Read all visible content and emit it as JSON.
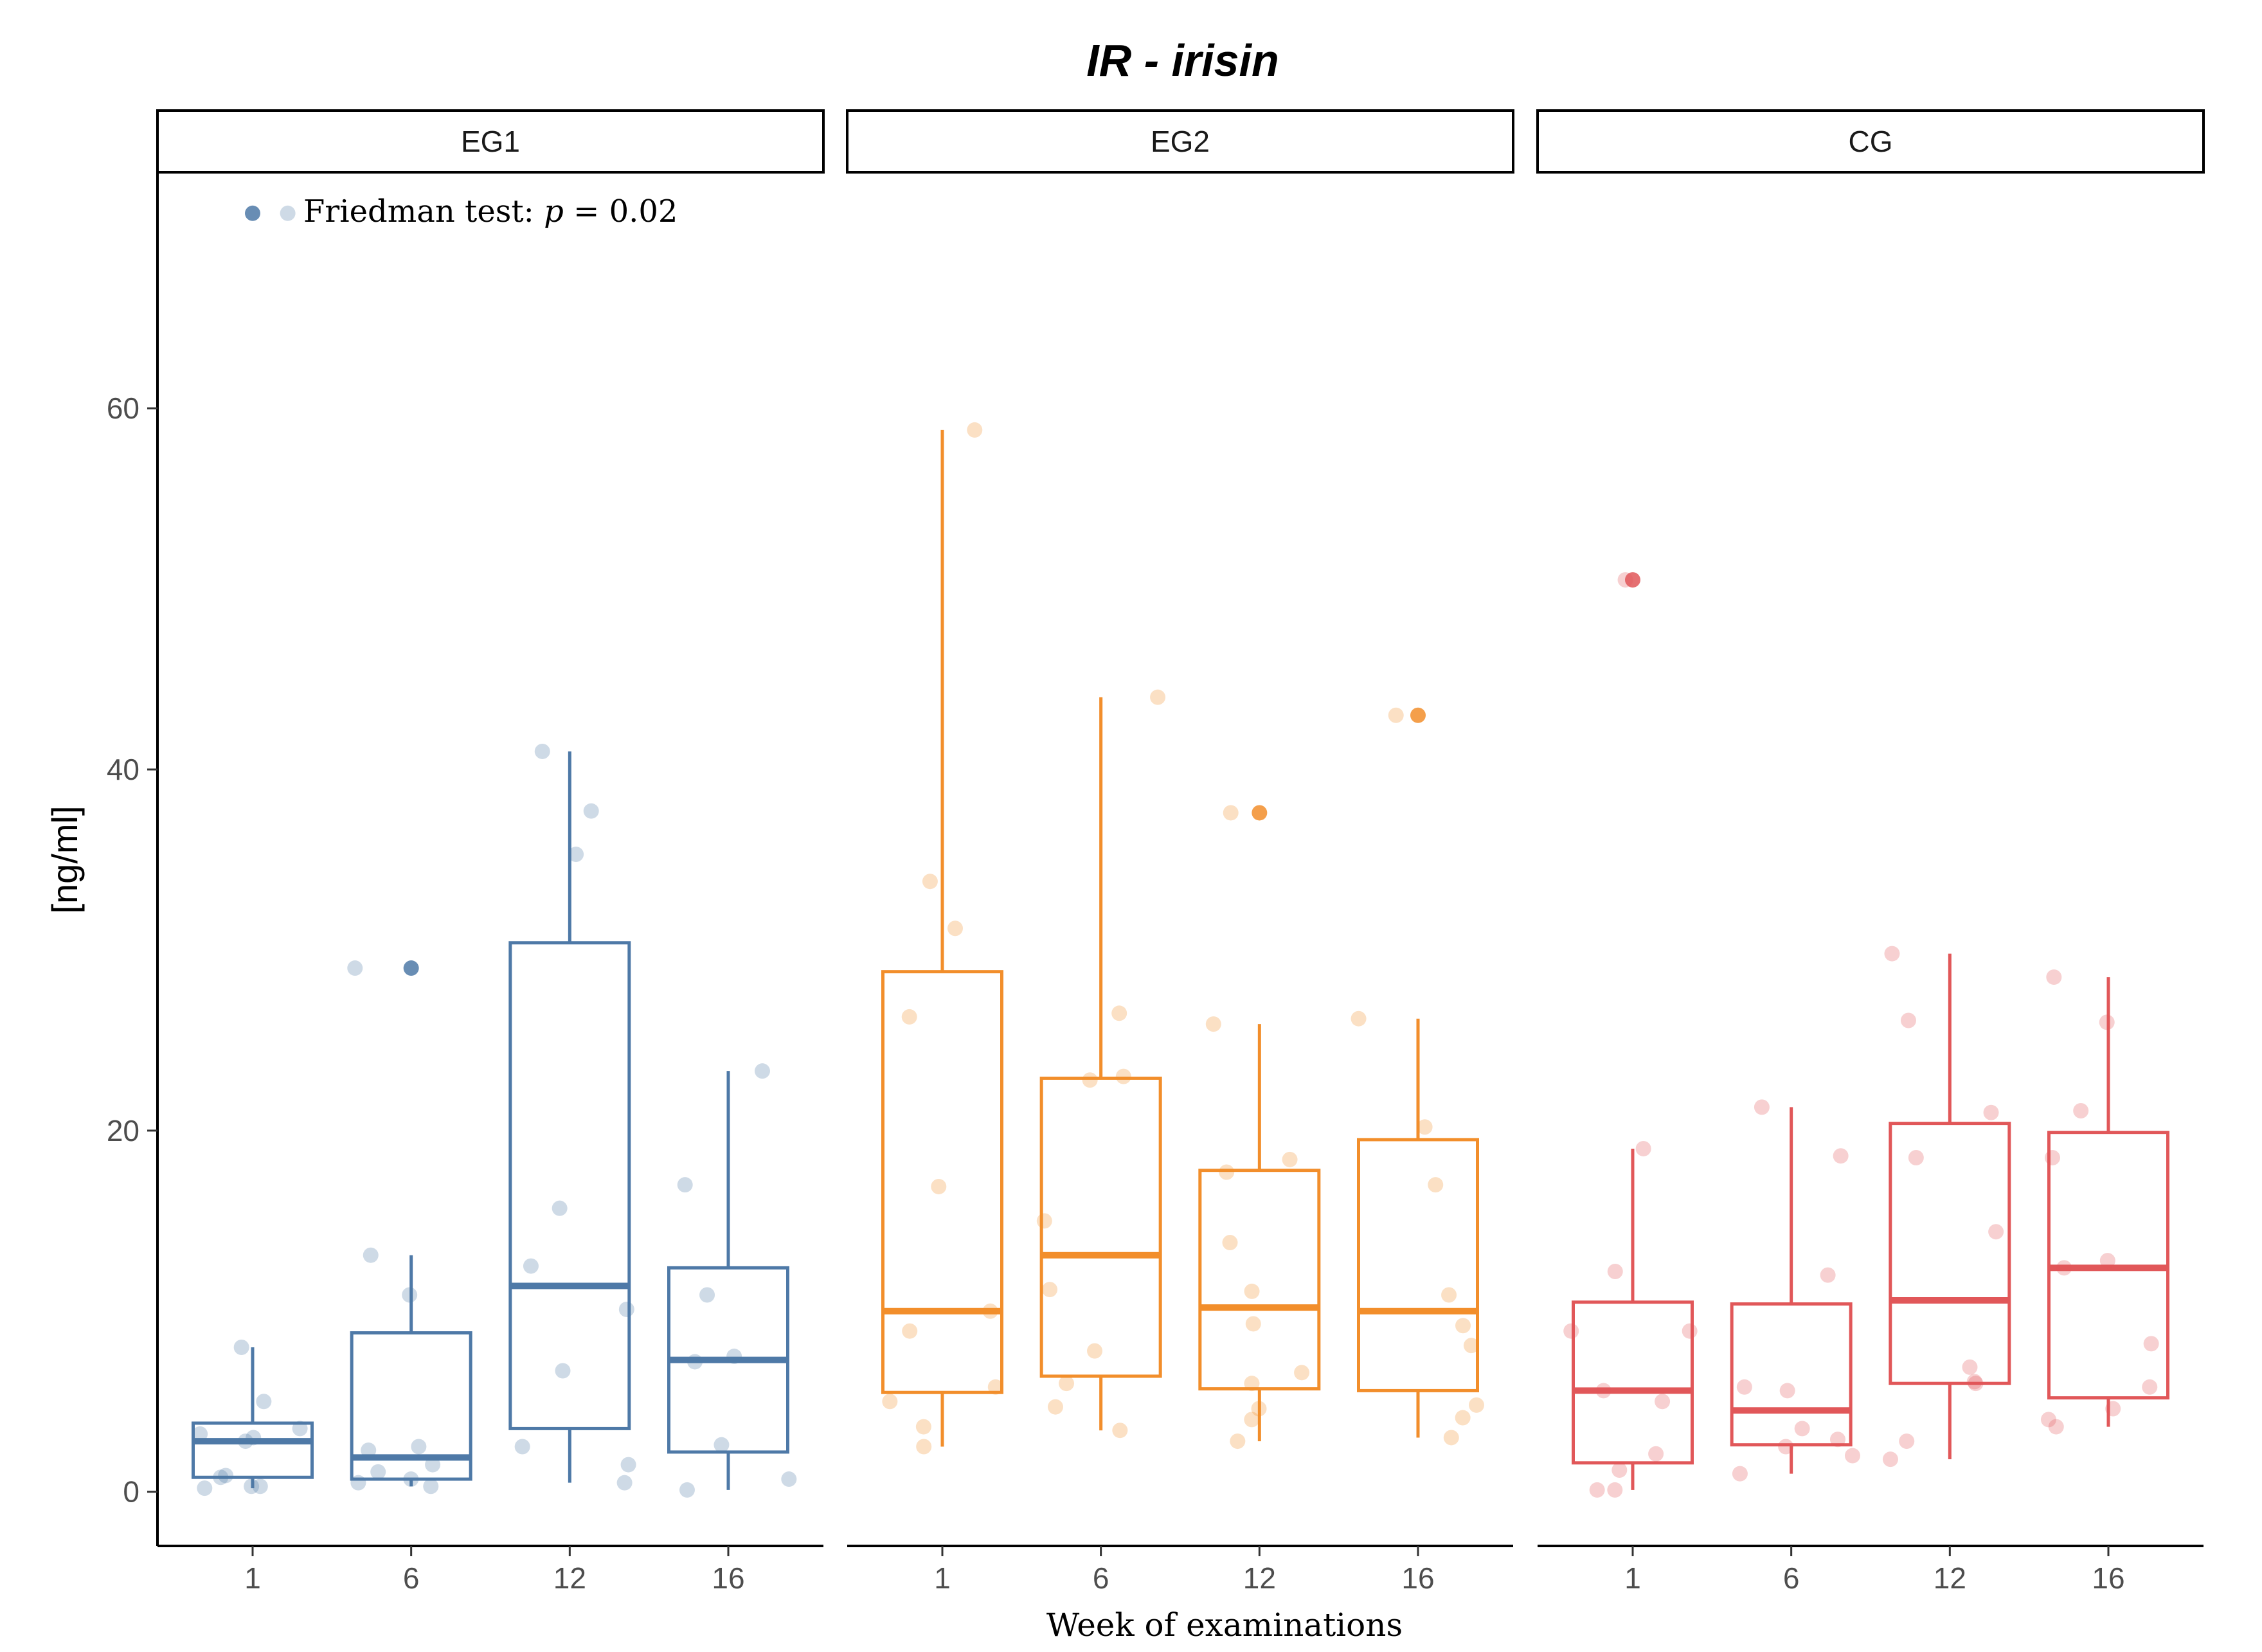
{
  "chart_data": {
    "type": "boxplot",
    "title": "IR - irisin",
    "xlabel": "Week of examinations",
    "ylabel": "[ng/ml]",
    "ylim": [
      -3,
      73
    ],
    "yticks": [
      0,
      20,
      40,
      60
    ],
    "categories": [
      "1",
      "6",
      "12",
      "16"
    ],
    "annotation": {
      "prefix": "Friedman test: ",
      "var": "p",
      "suffix": " = 0.02"
    },
    "panels": [
      {
        "name": "EG1",
        "color": "#4E79A7",
        "boxes": [
          {
            "week": "1",
            "q1": 0.8,
            "median": 2.8,
            "q3": 3.8,
            "lower": 0.2,
            "upper": 8.0,
            "outliers": [
              70.8
            ],
            "points": [
              0.3,
              0.3,
              0.2,
              0.8,
              2.8,
              3.0,
              3.2,
              3.5,
              5.0,
              8.0,
              0.9,
              70.8
            ]
          },
          {
            "week": "6",
            "q1": 0.7,
            "median": 1.9,
            "q3": 8.8,
            "lower": 0.3,
            "upper": 13.1,
            "outliers": [
              29.0
            ],
            "points": [
              0.3,
              0.5,
              0.7,
              1.1,
              1.5,
              2.3,
              2.5,
              10.9,
              13.1,
              29.0
            ]
          },
          {
            "week": "12",
            "q1": 3.5,
            "median": 11.4,
            "q3": 30.4,
            "lower": 0.5,
            "upper": 41.0,
            "outliers": [],
            "points": [
              0.5,
              1.5,
              2.5,
              6.7,
              10.1,
              12.5,
              15.7,
              35.3,
              37.7,
              41.0
            ]
          },
          {
            "week": "16",
            "q1": 2.2,
            "median": 7.3,
            "q3": 12.4,
            "lower": 0.1,
            "upper": 23.3,
            "outliers": [],
            "points": [
              0.1,
              0.7,
              2.6,
              7.2,
              7.5,
              10.9,
              17.0,
              23.3
            ]
          }
        ]
      },
      {
        "name": "EG2",
        "color": "#F28E2B",
        "boxes": [
          {
            "week": "1",
            "q1": 5.5,
            "median": 10.0,
            "q3": 28.8,
            "lower": 2.5,
            "upper": 58.8,
            "outliers": [],
            "points": [
              2.5,
              3.6,
              5.0,
              5.8,
              8.9,
              10.0,
              16.9,
              26.3,
              31.2,
              33.8,
              58.8
            ]
          },
          {
            "week": "6",
            "q1": 6.4,
            "median": 13.1,
            "q3": 22.9,
            "lower": 3.4,
            "upper": 44.0,
            "outliers": [],
            "points": [
              3.4,
              4.7,
              6.0,
              7.8,
              11.2,
              15.0,
              22.8,
              23.0,
              26.5,
              44.0
            ]
          },
          {
            "week": "12",
            "q1": 5.7,
            "median": 10.2,
            "q3": 17.8,
            "lower": 2.8,
            "upper": 25.9,
            "outliers": [
              37.6
            ],
            "points": [
              2.8,
              4.0,
              4.6,
              6.0,
              6.6,
              9.3,
              11.1,
              13.8,
              17.7,
              18.4,
              25.9,
              37.6
            ]
          },
          {
            "week": "16",
            "q1": 5.6,
            "median": 10.0,
            "q3": 19.5,
            "lower": 3.0,
            "upper": 26.2,
            "outliers": [
              43.0
            ],
            "points": [
              3.0,
              4.1,
              4.8,
              8.1,
              9.2,
              10.9,
              17.0,
              20.2,
              26.2,
              43.0
            ]
          }
        ]
      },
      {
        "name": "CG",
        "color": "#E15759",
        "boxes": [
          {
            "week": "1",
            "q1": 1.6,
            "median": 5.6,
            "q3": 10.5,
            "lower": 0.1,
            "upper": 19.0,
            "outliers": [
              50.5
            ],
            "points": [
              0.1,
              0.1,
              1.2,
              2.1,
              5.0,
              5.6,
              8.9,
              8.9,
              12.2,
              19.0,
              50.5
            ]
          },
          {
            "week": "6",
            "q1": 2.6,
            "median": 4.5,
            "q3": 10.4,
            "lower": 1.0,
            "upper": 21.3,
            "outliers": [],
            "points": [
              1.0,
              2.0,
              2.5,
              2.9,
              3.5,
              5.6,
              5.8,
              12.0,
              18.6,
              21.3
            ]
          },
          {
            "week": "12",
            "q1": 6.0,
            "median": 10.6,
            "q3": 20.4,
            "lower": 1.8,
            "upper": 29.8,
            "outliers": [],
            "points": [
              1.8,
              2.8,
              6.0,
              6.1,
              6.9,
              14.4,
              18.5,
              21.0,
              26.1,
              29.8
            ]
          },
          {
            "week": "16",
            "q1": 5.2,
            "median": 12.4,
            "q3": 19.9,
            "lower": 3.6,
            "upper": 28.5,
            "outliers": [],
            "points": [
              3.6,
              4.0,
              4.6,
              5.8,
              8.2,
              12.4,
              12.8,
              18.5,
              21.1,
              26.0,
              28.5
            ]
          }
        ]
      }
    ]
  }
}
